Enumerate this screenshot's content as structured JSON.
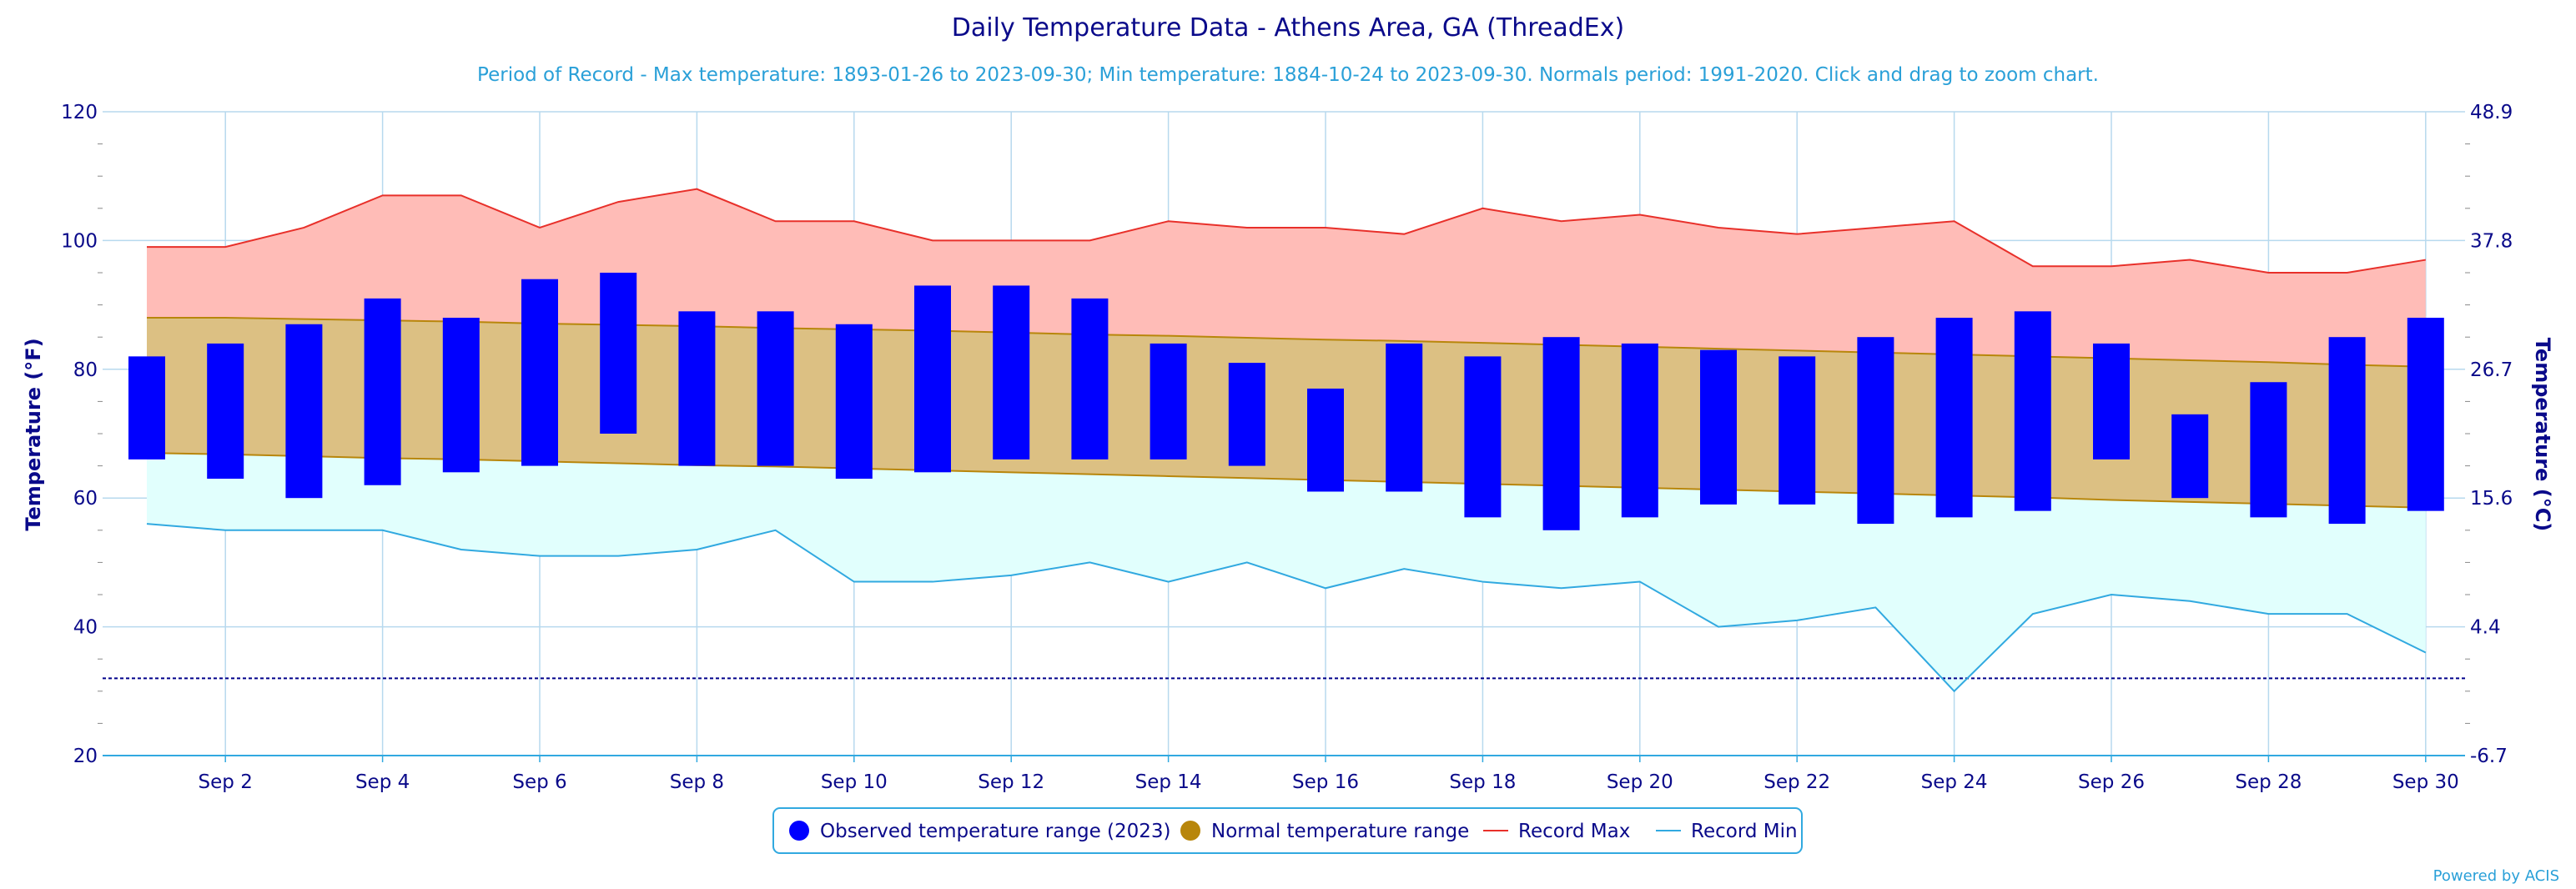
{
  "chart_data": {
    "type": "bar",
    "title": "Daily Temperature Data - Athens Area, GA (ThreadEx)",
    "subtitle": "Period of Record - Max temperature: 1893-01-26 to 2023-09-30; Min temperature: 1884-10-24 to 2023-09-30. Normals period: 1991-2020. Click and drag to zoom chart.",
    "ylabel": "Temperature (°F)",
    "y2label": "Temperature (°C)",
    "ylim": [
      20,
      120
    ],
    "y_ticks": [
      "20",
      "40",
      "60",
      "80",
      "100",
      "120"
    ],
    "y2_ticks": [
      "-6.7",
      "4.4",
      "15.6",
      "26.7",
      "37.8",
      "48.9"
    ],
    "freezing_line": 32,
    "x_tick_labels": [
      "Sep 2",
      "Sep 4",
      "Sep 6",
      "Sep 8",
      "Sep 10",
      "Sep 12",
      "Sep 14",
      "Sep 16",
      "Sep 18",
      "Sep 20",
      "Sep 22",
      "Sep 24",
      "Sep 26",
      "Sep 28",
      "Sep 30"
    ],
    "x": [
      1,
      2,
      3,
      4,
      5,
      6,
      7,
      8,
      9,
      10,
      11,
      12,
      13,
      14,
      15,
      16,
      17,
      18,
      19,
      20,
      21,
      22,
      23,
      24,
      25,
      26,
      27,
      28,
      29,
      30
    ],
    "series": [
      {
        "name": "Observed temperature range (2023)",
        "kind": "range-bar",
        "color": "#0000ff",
        "high": [
          82,
          84,
          87,
          91,
          88,
          94,
          95,
          89,
          89,
          87,
          93,
          93,
          91,
          84,
          81,
          77,
          84,
          82,
          85,
          84,
          83,
          82,
          85,
          88,
          89,
          84,
          73,
          78,
          85,
          88
        ],
        "low": [
          66,
          63,
          60,
          62,
          64,
          65,
          70,
          65,
          65,
          63,
          64,
          66,
          66,
          66,
          65,
          61,
          61,
          57,
          55,
          57,
          59,
          59,
          56,
          57,
          58,
          66,
          60,
          57,
          56,
          58
        ]
      },
      {
        "name": "Normal temperature range",
        "kind": "area-range",
        "color": "#b8860b",
        "high": [
          88,
          88,
          87.8,
          87.6,
          87.4,
          87.1,
          86.9,
          86.7,
          86.4,
          86.2,
          86,
          85.7,
          85.4,
          85.2,
          84.9,
          84.6,
          84.4,
          84.1,
          83.8,
          83.5,
          83.2,
          82.9,
          82.6,
          82.3,
          82,
          81.7,
          81.4,
          81.1,
          80.7,
          80.4
        ],
        "low": [
          67,
          66.8,
          66.5,
          66.2,
          66,
          65.7,
          65.4,
          65.1,
          64.9,
          64.6,
          64.3,
          64,
          63.7,
          63.4,
          63.1,
          62.8,
          62.5,
          62.2,
          61.9,
          61.6,
          61.3,
          61,
          60.7,
          60.4,
          60.1,
          59.7,
          59.4,
          59.1,
          58.8,
          58.5
        ]
      },
      {
        "name": "Record Max",
        "kind": "line",
        "color": "#e8302a",
        "values": [
          99,
          99,
          102,
          107,
          107,
          102,
          106,
          108,
          103,
          103,
          100,
          100,
          100,
          103,
          102,
          102,
          101,
          105,
          103,
          104,
          102,
          101,
          102,
          103,
          96,
          96,
          97,
          95,
          95,
          97
        ]
      },
      {
        "name": "Record Min",
        "kind": "line",
        "color": "#31a9e0",
        "values": [
          56,
          55,
          55,
          55,
          52,
          51,
          51,
          52,
          55,
          47,
          47,
          48,
          50,
          47,
          50,
          46,
          49,
          47,
          46,
          47,
          40,
          41,
          43,
          30,
          42,
          45,
          44,
          42,
          42,
          36
        ]
      }
    ],
    "legend": [
      "Observed temperature range (2023)",
      "Normal temperature range",
      "Record Max",
      "Record Min"
    ],
    "legend_position": "bottom-center",
    "grid": true
  },
  "credit": "Powered by ACIS",
  "colors": {
    "text_dark": "#0a0a8a",
    "text_light": "#2aa0d8",
    "grid": "#b7d9ee",
    "record_max_fill": "#ffbcb7",
    "record_min_fill": "#e1fffd",
    "normal_fill": "#dcc083"
  }
}
